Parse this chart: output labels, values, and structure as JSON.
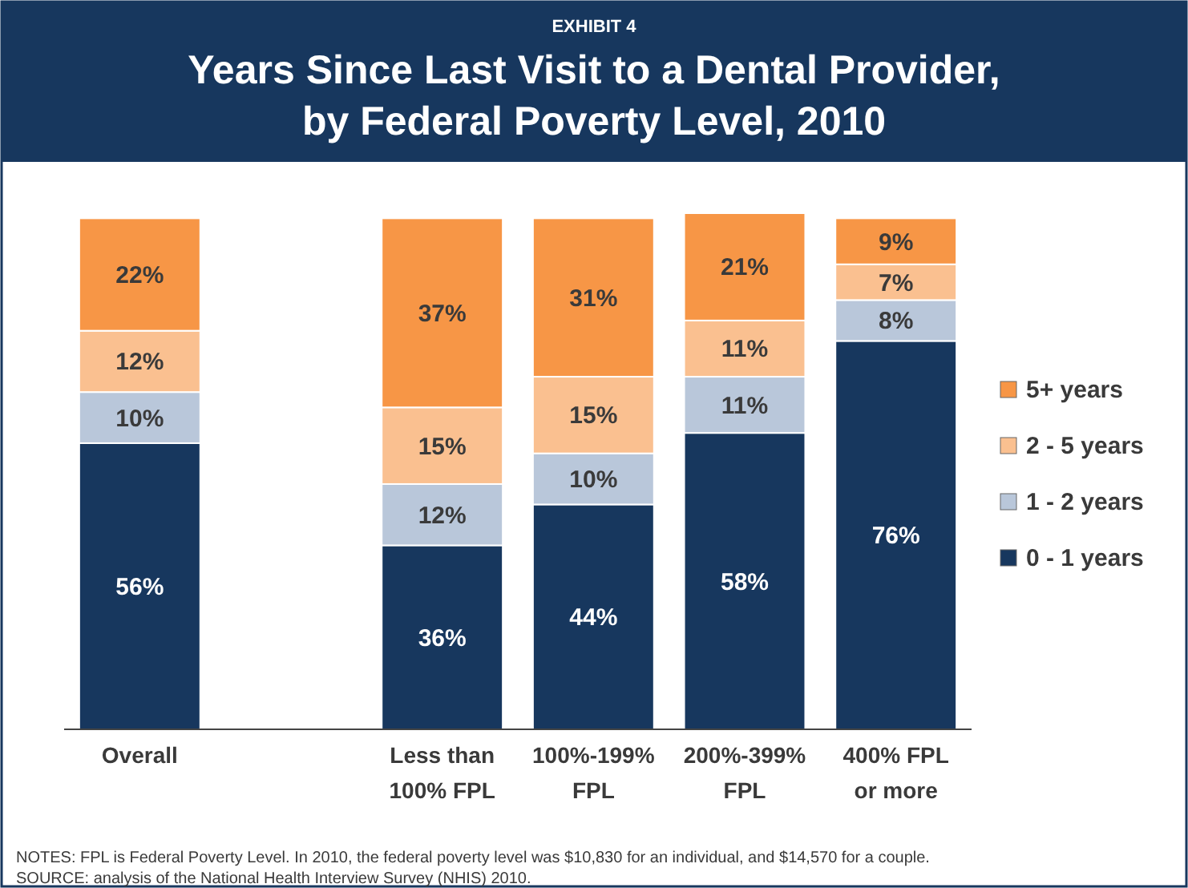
{
  "chart_data": {
    "type": "bar",
    "stacked": true,
    "subtitle": "EXHIBIT 4",
    "title": "Years Since Last Visit to a Dental Provider,\nby Federal Poverty Level, 2010",
    "categories": [
      "Overall",
      null,
      "Less than\n100% FPL",
      "100%-199%\nFPL",
      "200%-399%\nFPL",
      "400% FPL\nor more"
    ],
    "series": [
      {
        "name": "0 - 1 years",
        "color": "#17375e",
        "values": [
          56,
          null,
          36,
          44,
          58,
          76
        ],
        "value_labels": [
          "56%",
          null,
          "36%",
          "44%",
          "58%",
          "76%"
        ]
      },
      {
        "name": "1 - 2 years",
        "color": "#b9c7da",
        "values": [
          10,
          null,
          12,
          10,
          11,
          8
        ],
        "value_labels": [
          "10%",
          null,
          "12%",
          "10%",
          "11%",
          "8%"
        ]
      },
      {
        "name": "2 - 5 years",
        "color": "#fac090",
        "values": [
          12,
          null,
          15,
          15,
          11,
          7
        ],
        "value_labels": [
          "12%",
          null,
          "15%",
          "15%",
          "11%",
          "7%"
        ]
      },
      {
        "name": "5+ years",
        "color": "#f79646",
        "values": [
          22,
          null,
          37,
          31,
          21,
          9
        ],
        "value_labels": [
          "22%",
          null,
          "37%",
          "31%",
          "21%",
          "9%"
        ]
      }
    ],
    "legend": "right",
    "grid": false,
    "annotations": [
      "NOTES: FPL is Federal Poverty Level.  In 2010, the federal poverty level was $10,830 for an individual, and $14,570 for a couple.",
      "SOURCE: analysis of the National Health Interview Survey (NHIS) 2010."
    ]
  }
}
